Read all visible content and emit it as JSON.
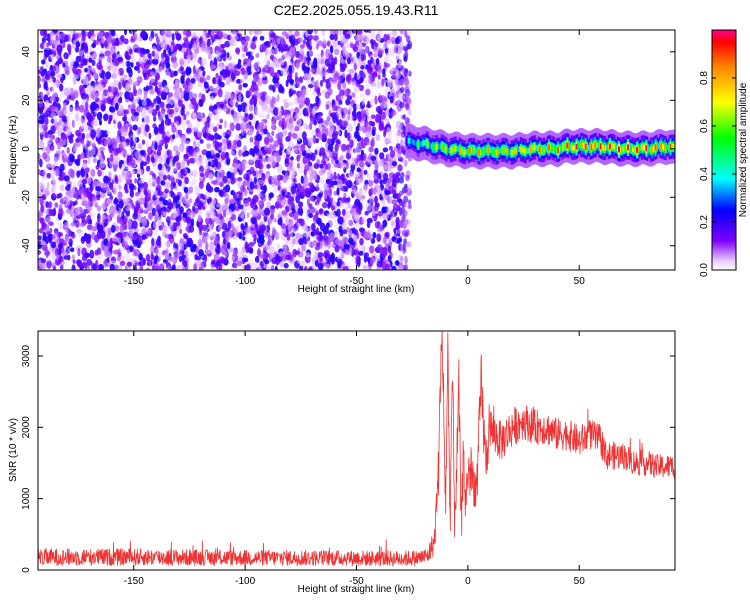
{
  "title": "C2E2.2025.055.19.43.R11",
  "chart_data": [
    {
      "type": "heatmap",
      "xlabel": "Height of straight line (km)",
      "ylabel": "Frequency (Hz)",
      "xlim": [
        -193,
        93
      ],
      "ylim": [
        -50,
        49
      ],
      "xticks": [
        -150,
        -100,
        -50,
        0,
        50
      ],
      "yticks": [
        -40,
        -20,
        0,
        20,
        40
      ],
      "noise_region_x": [
        -193,
        -28
      ],
      "ridge": {
        "x": [
          -28,
          -20,
          -10,
          0,
          10,
          20,
          30,
          40,
          45,
          50,
          60,
          70,
          80,
          90,
          93
        ],
        "frequency": [
          3,
          2,
          0,
          -1,
          -1,
          -1,
          0,
          0,
          1,
          1,
          1,
          0,
          0,
          1,
          0
        ],
        "peak_amplitude": [
          0.4,
          0.6,
          0.75,
          0.85,
          0.8,
          0.8,
          0.85,
          0.85,
          0.95,
          0.95,
          0.95,
          0.95,
          0.95,
          0.9,
          0.9
        ]
      },
      "colorbar": {
        "label": "Normalized spectral amplitude",
        "range": [
          0,
          1
        ],
        "ticks": [
          "0.0",
          "0.2",
          "0.4",
          "0.6",
          "0.8"
        ]
      }
    },
    {
      "type": "line",
      "xlabel": "Height of straight line (km)",
      "ylabel": "SNR (10 * v/v)",
      "xlim": [
        -193,
        93
      ],
      "ylim": [
        0,
        3350
      ],
      "xticks": [
        -150,
        -100,
        -50,
        0,
        50
      ],
      "yticks": [
        0,
        1000,
        2000,
        3000
      ],
      "color": "#ee3333",
      "series": [
        {
          "x": [
            -193,
            -150,
            -100,
            -60,
            -30,
            -22,
            -18,
            -15,
            -13,
            -12,
            -11,
            -10,
            -9,
            -8,
            -7,
            -6,
            -5,
            -4,
            -3,
            -2,
            -1,
            0,
            2,
            4,
            6,
            8,
            10,
            12,
            15,
            20,
            25,
            30,
            35,
            40,
            45,
            50,
            55,
            60,
            62,
            65,
            70,
            75,
            80,
            85,
            90,
            93
          ],
          "values": [
            180,
            180,
            170,
            170,
            160,
            170,
            200,
            400,
            1500,
            3350,
            2500,
            900,
            3000,
            700,
            2800,
            800,
            1400,
            2500,
            600,
            1600,
            900,
            1400,
            1300,
            1100,
            2600,
            1500,
            2000,
            1900,
            1800,
            2000,
            2100,
            2000,
            2000,
            1900,
            1900,
            1800,
            1900,
            1800,
            1600,
            1600,
            1600,
            1500,
            1500,
            1450,
            1450,
            1450
          ],
          "noise": [
            120,
            120,
            110,
            110,
            110,
            110,
            120,
            200,
            400,
            500,
            500,
            400,
            500,
            400,
            500,
            400,
            450,
            500,
            350,
            450,
            350,
            400,
            350,
            300,
            500,
            350,
            300,
            300,
            280,
            280,
            260,
            250,
            240,
            230,
            220,
            220,
            220,
            220,
            200,
            200,
            190,
            180,
            180,
            170,
            170,
            170
          ]
        }
      ]
    }
  ]
}
